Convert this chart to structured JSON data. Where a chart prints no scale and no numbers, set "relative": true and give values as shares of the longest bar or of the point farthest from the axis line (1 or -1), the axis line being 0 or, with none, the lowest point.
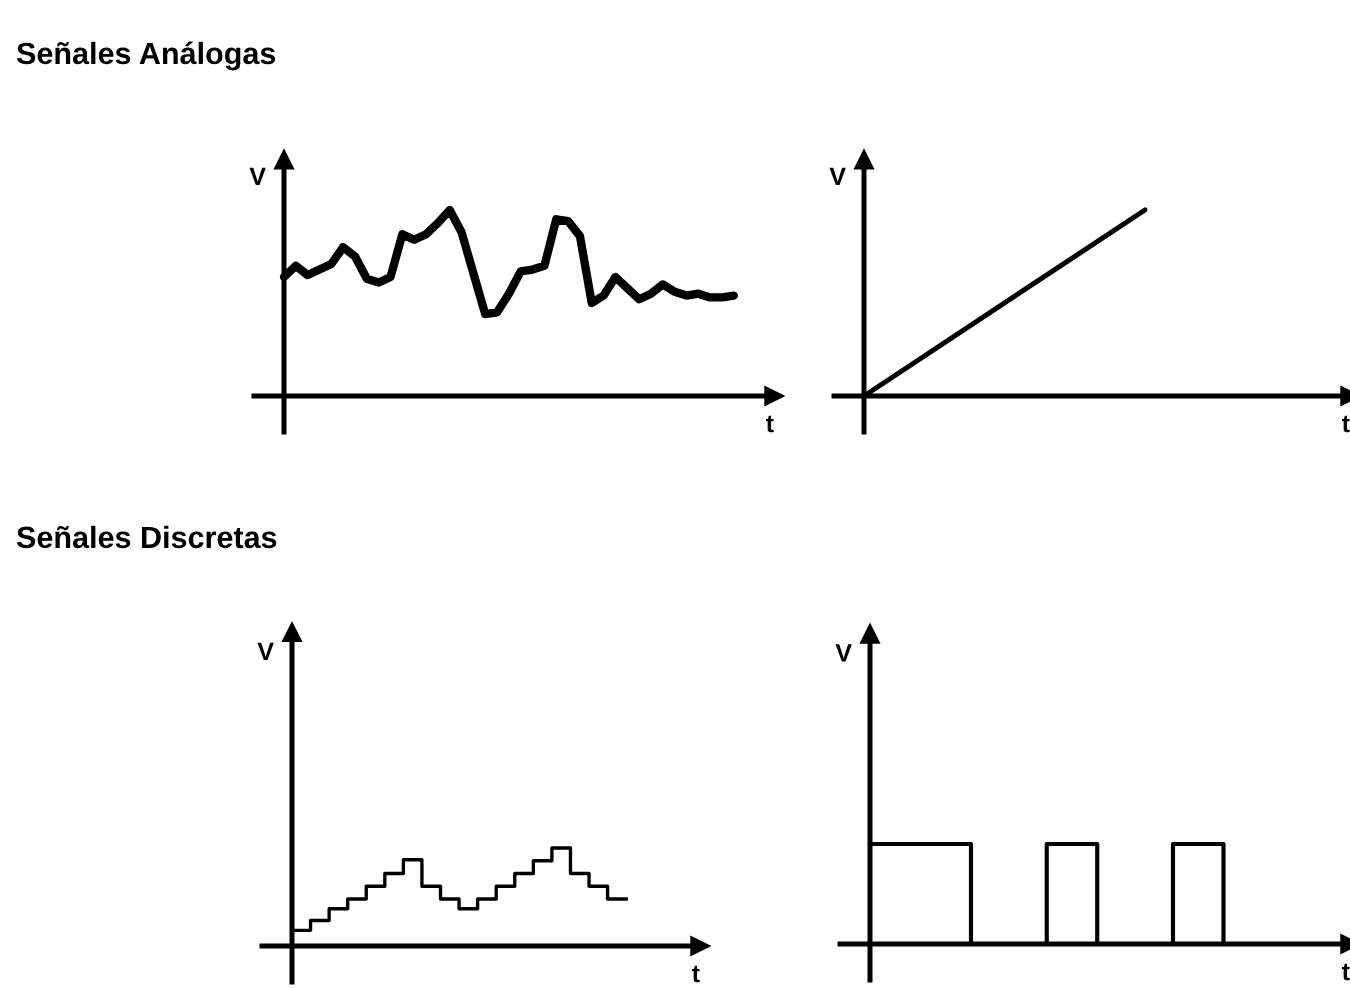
{
  "chart_data": [
    {
      "type": "line",
      "title": "Señales Análogas",
      "xlabel": "t",
      "ylabel": "V",
      "relative": true,
      "color": "#000000",
      "categories": [
        null,
        null,
        null,
        null,
        null,
        null,
        null,
        null,
        null,
        null,
        null,
        null,
        null,
        null,
        null,
        null,
        null,
        null,
        null,
        null,
        null,
        null,
        null,
        null,
        null,
        null,
        null,
        null,
        null,
        null,
        null,
        null,
        null,
        null,
        null,
        null,
        null,
        null,
        null
      ],
      "values": [
        0.64,
        0.7,
        0.65,
        0.68,
        0.71,
        0.8,
        0.75,
        0.63,
        0.61,
        0.64,
        0.87,
        0.84,
        0.87,
        0.93,
        1.0,
        0.88,
        0.66,
        0.44,
        0.45,
        0.55,
        0.67,
        0.68,
        0.7,
        0.95,
        0.94,
        0.86,
        0.5,
        0.54,
        0.64,
        0.58,
        0.52,
        0.55,
        0.6,
        0.56,
        0.54,
        0.55,
        0.53,
        0.53,
        0.54
      ]
    },
    {
      "type": "line",
      "xlabel": "t",
      "ylabel": "V",
      "relative": true,
      "color": "#000000",
      "categories": [
        null,
        null
      ],
      "values": [
        0,
        1
      ]
    },
    {
      "type": "step",
      "title": "Señales Discretas",
      "xlabel": "t",
      "ylabel": "V",
      "relative": true,
      "color": "#000000",
      "categories": [
        null,
        null,
        null,
        null,
        null,
        null,
        null,
        null,
        null,
        null,
        null,
        null,
        null,
        null,
        null,
        null,
        null,
        null,
        null
      ],
      "values": [
        0.16,
        0.26,
        0.38,
        0.48,
        0.61,
        0.74,
        0.88,
        0.61,
        0.48,
        0.38,
        0.48,
        0.61,
        0.74,
        0.87,
        1.0,
        0.74,
        0.61,
        0.48,
        0.48
      ]
    },
    {
      "type": "step",
      "xlabel": "t",
      "ylabel": "V",
      "relative": true,
      "color": "#000000",
      "categories": [
        null,
        null,
        null,
        null,
        null,
        null,
        null,
        null,
        null,
        null,
        null,
        null,
        null,
        null,
        null
      ],
      "values": [
        1,
        1,
        1,
        1,
        0,
        0,
        0,
        1,
        1,
        0,
        0,
        0,
        1,
        1,
        0
      ]
    }
  ]
}
